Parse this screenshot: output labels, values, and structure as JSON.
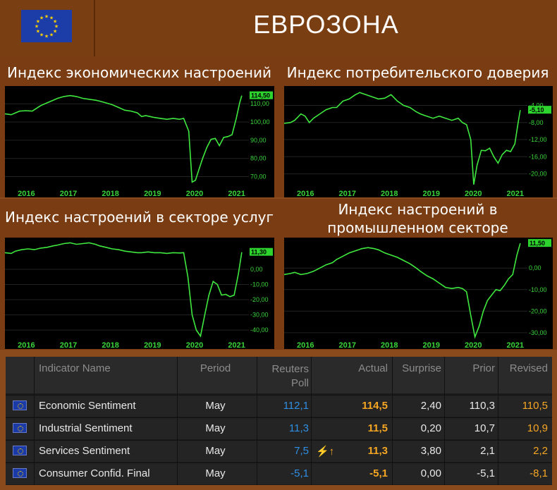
{
  "header": {
    "title": "ЕВРОЗОНА",
    "flag_icon": "eu-flag-icon"
  },
  "colors": {
    "background": "#8a4a1c",
    "chart_line": "#3ee83e",
    "chart_bg": "#000000",
    "poll_blue": "#2f8fe4",
    "actual_orange": "#f5a623"
  },
  "chart_data": [
    {
      "type": "line",
      "title": "Индекс экономических настроений",
      "x_tick_labels": [
        "2016",
        "2017",
        "2018",
        "2019",
        "2020",
        "2021"
      ],
      "y_tick_labels": [
        "110,00",
        "100,00",
        "90,00",
        "80,00",
        "70,00"
      ],
      "ylim": [
        64,
        119
      ],
      "last_value_label": "114,50",
      "x": [
        2015.75,
        2015.9,
        2016.0,
        2016.1,
        2016.25,
        2016.4,
        2016.5,
        2016.6,
        2016.75,
        2016.9,
        2017.0,
        2017.15,
        2017.3,
        2017.45,
        2017.6,
        2017.75,
        2017.9,
        2018.0,
        2018.15,
        2018.3,
        2018.45,
        2018.6,
        2018.75,
        2018.9,
        2019.0,
        2019.1,
        2019.2,
        2019.3,
        2019.45,
        2019.6,
        2019.75,
        2019.9,
        2020.0,
        2020.12,
        2020.2,
        2020.28,
        2020.35,
        2020.45,
        2020.55,
        2020.65,
        2020.75,
        2020.85,
        2020.95,
        2021.05,
        2021.15,
        2021.25,
        2021.33,
        2021.38
      ],
      "y": [
        104.5,
        104.0,
        105.0,
        106.0,
        106.2,
        106.0,
        107.5,
        109.0,
        110.5,
        112.0,
        113.0,
        114.0,
        114.5,
        114.0,
        113.0,
        112.5,
        112.0,
        111.5,
        110.5,
        109.5,
        108.0,
        106.5,
        106.0,
        105.0,
        103.0,
        103.5,
        103.0,
        102.5,
        102.0,
        101.5,
        102.0,
        101.5,
        102.0,
        95.0,
        67.0,
        68.0,
        73.0,
        80.0,
        86.0,
        90.5,
        91.0,
        87.0,
        91.5,
        92.0,
        93.0,
        102.0,
        110.5,
        114.5
      ]
    },
    {
      "type": "line",
      "title": "Индекс потребительского доверия",
      "x_tick_labels": [
        "2016",
        "2017",
        "2018",
        "2019",
        "2020",
        "2021"
      ],
      "y_tick_labels": [
        "-4,00",
        "-8,00",
        "-12,00",
        "-16,00",
        "-20,00"
      ],
      "ylim": [
        -23.2,
        0.2
      ],
      "last_value_label": "-5,10",
      "x": [
        2015.75,
        2015.9,
        2016.0,
        2016.15,
        2016.25,
        2016.35,
        2016.45,
        2016.6,
        2016.75,
        2016.9,
        2017.0,
        2017.15,
        2017.3,
        2017.45,
        2017.55,
        2017.7,
        2017.85,
        2018.0,
        2018.15,
        2018.3,
        2018.45,
        2018.6,
        2018.75,
        2018.9,
        2019.0,
        2019.15,
        2019.3,
        2019.45,
        2019.6,
        2019.75,
        2019.9,
        2020.0,
        2020.1,
        2020.2,
        2020.27,
        2020.35,
        2020.45,
        2020.55,
        2020.65,
        2020.75,
        2020.85,
        2020.95,
        2021.05,
        2021.15,
        2021.25,
        2021.33,
        2021.38
      ],
      "y": [
        -8.2,
        -8.0,
        -7.5,
        -6.0,
        -6.5,
        -8.0,
        -7.0,
        -6.0,
        -5.0,
        -4.5,
        -4.5,
        -3.0,
        -2.5,
        -1.5,
        -1.0,
        -1.5,
        -2.0,
        -2.5,
        -2.3,
        -1.5,
        -3.0,
        -4.0,
        -4.5,
        -5.5,
        -6.0,
        -6.5,
        -7.0,
        -6.5,
        -7.0,
        -7.5,
        -7.0,
        -8.0,
        -8.5,
        -12.0,
        -22.5,
        -18.0,
        -14.5,
        -14.6,
        -14.0,
        -16.0,
        -17.5,
        -15.5,
        -14.5,
        -14.8,
        -13.0,
        -8.0,
        -5.1
      ]
    },
    {
      "type": "line",
      "title": "Индекс настроений в секторе услуг",
      "x_tick_labels": [
        "2016",
        "2017",
        "2018",
        "2019",
        "2020",
        "2021"
      ],
      "y_tick_labels": [
        "0,00",
        "-10,00",
        "-20,00",
        "-30,00",
        "-40,00"
      ],
      "ylim": [
        -46,
        20
      ],
      "last_value_label": "11,30",
      "x": [
        2015.75,
        2015.9,
        2016.0,
        2016.15,
        2016.3,
        2016.45,
        2016.6,
        2016.75,
        2016.9,
        2017.0,
        2017.15,
        2017.3,
        2017.45,
        2017.6,
        2017.75,
        2017.9,
        2018.0,
        2018.15,
        2018.3,
        2018.45,
        2018.6,
        2018.75,
        2018.9,
        2019.0,
        2019.15,
        2019.3,
        2019.45,
        2019.6,
        2019.75,
        2019.9,
        2020.0,
        2020.1,
        2020.2,
        2020.3,
        2020.4,
        2020.5,
        2020.6,
        2020.7,
        2020.8,
        2020.9,
        2021.0,
        2021.1,
        2021.2,
        2021.3,
        2021.38
      ],
      "y": [
        11.0,
        10.5,
        12.0,
        13.0,
        13.5,
        13.0,
        14.0,
        14.5,
        15.5,
        16.0,
        17.0,
        17.5,
        16.5,
        17.0,
        17.5,
        16.5,
        15.5,
        14.5,
        13.5,
        13.0,
        12.0,
        11.5,
        11.0,
        11.0,
        11.5,
        11.0,
        11.0,
        10.5,
        11.0,
        10.8,
        11.0,
        -5.0,
        -30.0,
        -40.0,
        -44.0,
        -30.0,
        -17.0,
        -8.0,
        -10.0,
        -17.0,
        -16.5,
        -18.0,
        -17.0,
        -3.0,
        11.3
      ]
    },
    {
      "type": "line",
      "title": "Индекс настроений в промышленном секторе",
      "x_tick_labels": [
        "2016",
        "2017",
        "2018",
        "2019",
        "2020",
        "2021"
      ],
      "y_tick_labels": [
        "0,00",
        "-10,00",
        "-20,00",
        "-30,00"
      ],
      "ylim": [
        -33,
        13.5
      ],
      "last_value_label": "11,50",
      "x": [
        2015.75,
        2015.9,
        2016.0,
        2016.15,
        2016.3,
        2016.45,
        2016.6,
        2016.75,
        2016.9,
        2017.0,
        2017.15,
        2017.3,
        2017.45,
        2017.6,
        2017.75,
        2017.9,
        2018.0,
        2018.15,
        2018.3,
        2018.45,
        2018.6,
        2018.75,
        2018.9,
        2019.0,
        2019.15,
        2019.3,
        2019.45,
        2019.6,
        2019.75,
        2019.9,
        2020.0,
        2020.1,
        2020.2,
        2020.3,
        2020.4,
        2020.5,
        2020.6,
        2020.7,
        2020.8,
        2020.9,
        2021.0,
        2021.1,
        2021.2,
        2021.3,
        2021.38
      ],
      "y": [
        -3.0,
        -2.5,
        -2.0,
        -3.0,
        -2.5,
        -1.5,
        0.0,
        1.5,
        2.5,
        4.0,
        5.5,
        7.0,
        8.0,
        9.0,
        9.5,
        9.0,
        8.5,
        7.0,
        6.0,
        5.0,
        3.5,
        2.0,
        0.0,
        -1.5,
        -3.5,
        -5.0,
        -7.0,
        -9.0,
        -9.5,
        -9.0,
        -9.5,
        -11.0,
        -22.0,
        -32.0,
        -27.0,
        -20.0,
        -15.0,
        -12.5,
        -10.0,
        -10.5,
        -8.0,
        -5.0,
        -3.0,
        6.0,
        11.5
      ]
    }
  ],
  "table": {
    "headers": {
      "name": "Indicator Name",
      "period": "Period",
      "poll": "Reuters Poll",
      "actual": "Actual",
      "surprise": "Surprise",
      "prior": "Prior",
      "revised": "Revised"
    },
    "rows": [
      {
        "name": "Economic Sentiment",
        "period": "May",
        "poll": "112,1",
        "alert": "",
        "actual": "114,5",
        "surprise": "2,40",
        "prior": "110,3",
        "revised": "110,5"
      },
      {
        "name": "Industrial Sentiment",
        "period": "May",
        "poll": "11,3",
        "alert": "",
        "actual": "11,5",
        "surprise": "0,20",
        "prior": "10,7",
        "revised": "10,9"
      },
      {
        "name": "Services Sentiment",
        "period": "May",
        "poll": "7,5",
        "alert": "⚡↑",
        "actual": "11,3",
        "surprise": "3,80",
        "prior": "2,1",
        "revised": "2,2"
      },
      {
        "name": "Consumer Confid. Final",
        "period": "May",
        "poll": "-5,1",
        "alert": "",
        "actual": "-5,1",
        "surprise": "0,00",
        "prior": "-5,1",
        "revised": "-8,1"
      }
    ]
  }
}
